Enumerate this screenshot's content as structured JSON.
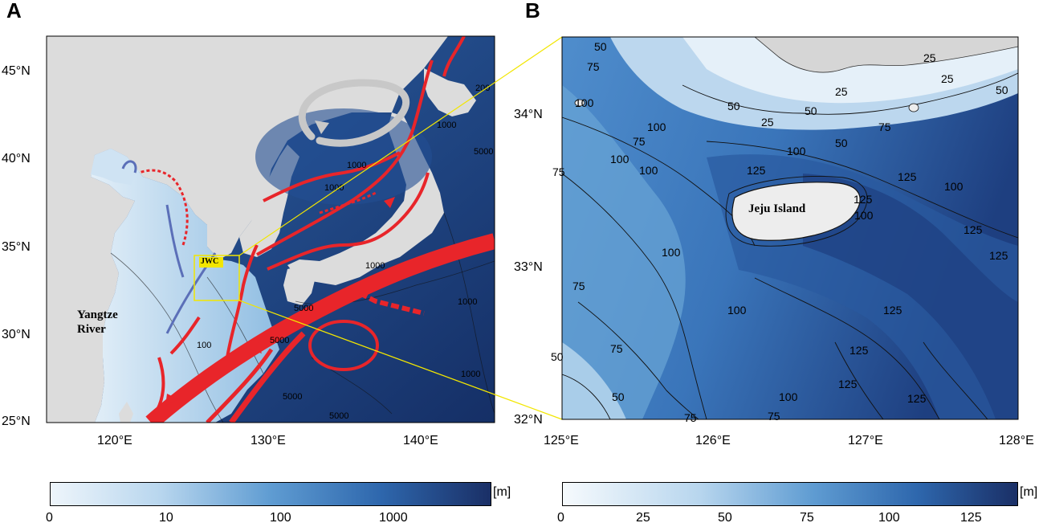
{
  "panels": {
    "a": {
      "letter": "A",
      "lat_labels": [
        "45°N",
        "40°N",
        "35°N",
        "30°N",
        "25°N"
      ],
      "lon_labels": [
        "120°E",
        "130°E",
        "140°E"
      ],
      "place_labels": {
        "river_line1": "Yangtze",
        "river_line2": "River",
        "current": "JWC"
      },
      "contour_labels": [
        "1000",
        "1000",
        "1000",
        "1000",
        "5000",
        "5000",
        "1000",
        "200",
        "100",
        "5000",
        "5000",
        "1000",
        "5000"
      ],
      "colorbar": {
        "ticks": [
          "0",
          "10",
          "100",
          "1000"
        ],
        "unit": "[m]"
      }
    },
    "b": {
      "letter": "B",
      "lat_labels": [
        "34°N",
        "33°N",
        "32°N"
      ],
      "lon_labels": [
        "125°E",
        "126°E",
        "127°E",
        "128°E"
      ],
      "place_labels": {
        "island": "Jeju Island"
      },
      "contour_labels": [
        "50",
        "75",
        "100",
        "75",
        "100",
        "100",
        "100",
        "125",
        "125",
        "125",
        "25",
        "50",
        "25",
        "25",
        "50",
        "75",
        "50",
        "100",
        "100",
        "125",
        "75",
        "100",
        "100",
        "125",
        "75",
        "50",
        "75",
        "50",
        "75",
        "100",
        "125",
        "125",
        "75",
        "100",
        "125",
        "125",
        "50",
        "25"
      ],
      "colorbar": {
        "ticks": [
          "0",
          "25",
          "50",
          "75",
          "100",
          "125"
        ],
        "unit": "[m]"
      }
    }
  },
  "colors": {
    "land": "#dcdcdc",
    "deep": "#1b3d7a",
    "shelf": "#6aa5d6",
    "shallow": "#d7e9f6",
    "current_warm": "#e8252a",
    "current_cold": "#5b6fb8",
    "gyre": "#c8c8c8",
    "box": "#f2e600"
  }
}
